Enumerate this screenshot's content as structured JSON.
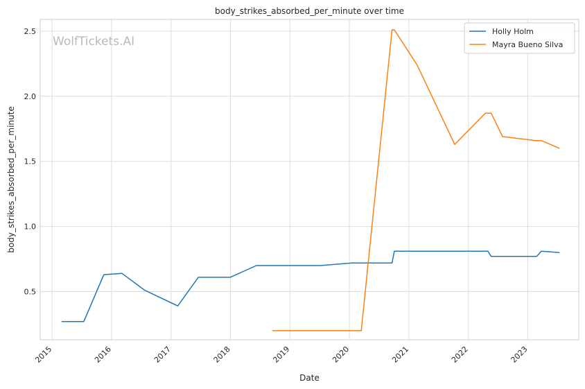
{
  "watermark": "WolfTickets.AI",
  "chart_data": {
    "type": "line",
    "title": "body_strikes_absorbed_per_minute over time",
    "xlabel": "Date",
    "ylabel": "body_strikes_absorbed_per_minute",
    "x_ticks": [
      "2015",
      "2016",
      "2017",
      "2018",
      "2019",
      "2020",
      "2021",
      "2022",
      "2023"
    ],
    "y_ticks": [
      "0.5",
      "1.0",
      "1.5",
      "2.0",
      "2.5"
    ],
    "xlim": [
      "2014-10-20",
      "2023-11-10"
    ],
    "ylim": [
      0.13,
      2.59
    ],
    "grid": true,
    "legend_position": "top-right",
    "series": [
      {
        "name": "Holly Holm",
        "color": "#1f77b4",
        "points": [
          {
            "x": "2015-02-28",
            "y": 0.27
          },
          {
            "x": "2015-07-15",
            "y": 0.27
          },
          {
            "x": "2015-11-15",
            "y": 0.63
          },
          {
            "x": "2016-03-05",
            "y": 0.64
          },
          {
            "x": "2016-07-23",
            "y": 0.51
          },
          {
            "x": "2017-02-11",
            "y": 0.39
          },
          {
            "x": "2017-06-17",
            "y": 0.61
          },
          {
            "x": "2017-12-30",
            "y": 0.61
          },
          {
            "x": "2018-06-09",
            "y": 0.7
          },
          {
            "x": "2019-07-06",
            "y": 0.7
          },
          {
            "x": "2020-01-18",
            "y": 0.72
          },
          {
            "x": "2020-09-19",
            "y": 0.72
          },
          {
            "x": "2020-10-03",
            "y": 0.81
          },
          {
            "x": "2022-05-01",
            "y": 0.81
          },
          {
            "x": "2022-05-21",
            "y": 0.77
          },
          {
            "x": "2023-02-25",
            "y": 0.77
          },
          {
            "x": "2023-03-25",
            "y": 0.81
          },
          {
            "x": "2023-07-15",
            "y": 0.8
          }
        ]
      },
      {
        "name": "Mayra Bueno Silva",
        "color": "#ff7f0e",
        "points": [
          {
            "x": "2018-09-15",
            "y": 0.2
          },
          {
            "x": "2020-03-14",
            "y": 0.2
          },
          {
            "x": "2020-09-19",
            "y": 2.51
          },
          {
            "x": "2020-10-03",
            "y": 2.51
          },
          {
            "x": "2021-02-20",
            "y": 2.24
          },
          {
            "x": "2021-10-09",
            "y": 1.63
          },
          {
            "x": "2022-04-16",
            "y": 1.87
          },
          {
            "x": "2022-05-21",
            "y": 1.87
          },
          {
            "x": "2022-07-30",
            "y": 1.69
          },
          {
            "x": "2023-02-18",
            "y": 1.66
          },
          {
            "x": "2023-03-25",
            "y": 1.66
          },
          {
            "x": "2023-07-15",
            "y": 1.6
          }
        ]
      }
    ]
  }
}
